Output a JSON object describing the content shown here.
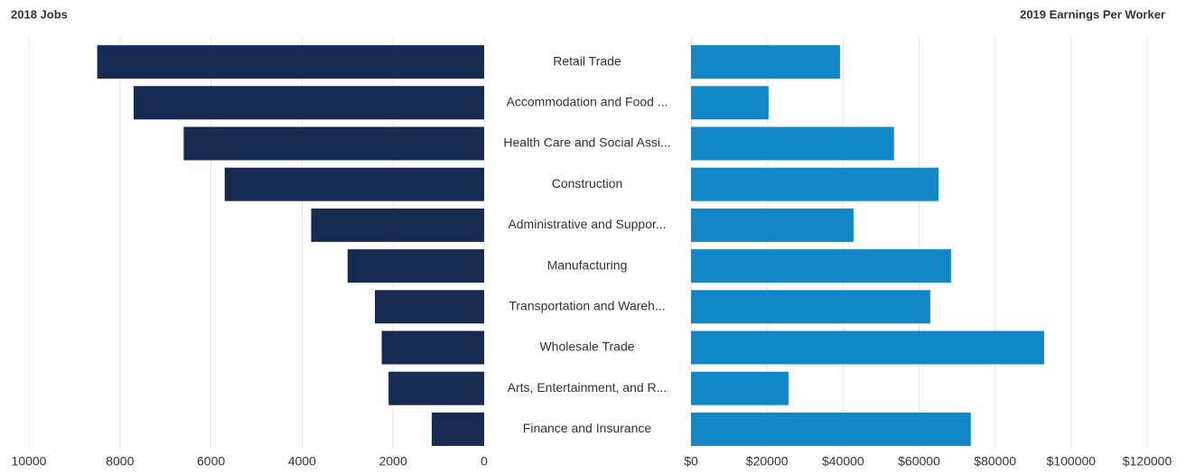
{
  "chart_data": [
    {
      "type": "bar",
      "title": "2018 Jobs",
      "categories": [
        "Retail Trade",
        "Accommodation and Food ...",
        "Health Care and Social Assi...",
        "Construction",
        "Administrative and Suppor...",
        "Manufacturing",
        "Transportation and Wareh...",
        "Wholesale Trade",
        "Arts, Entertainment, and R...",
        "Finance and Insurance"
      ],
      "values": [
        8500,
        7700,
        6600,
        5700,
        3800,
        3000,
        2400,
        2250,
        2100,
        1150
      ],
      "color": "#172a52",
      "xlim": [
        10000,
        0
      ],
      "xticks": [
        10000,
        8000,
        6000,
        4000,
        2000,
        0
      ],
      "grid": true
    },
    {
      "type": "bar",
      "title": "2019 Earnings Per Worker",
      "values": [
        39200,
        20400,
        53400,
        65100,
        42750,
        68400,
        62950,
        92900,
        25650,
        73600
      ],
      "color": "#1287c8",
      "xlim": [
        0,
        120000
      ],
      "xticks": [
        {
          "value": 0,
          "label": "$0"
        },
        {
          "value": 20000,
          "label": "$20000"
        },
        {
          "value": 40000,
          "label": "$40000"
        },
        {
          "value": 60000,
          "label": "$60000"
        },
        {
          "value": 80000,
          "label": "$80000"
        },
        {
          "value": 100000,
          "label": "$100000"
        },
        {
          "value": 120000,
          "label": "$120000"
        }
      ],
      "grid": true
    }
  ]
}
